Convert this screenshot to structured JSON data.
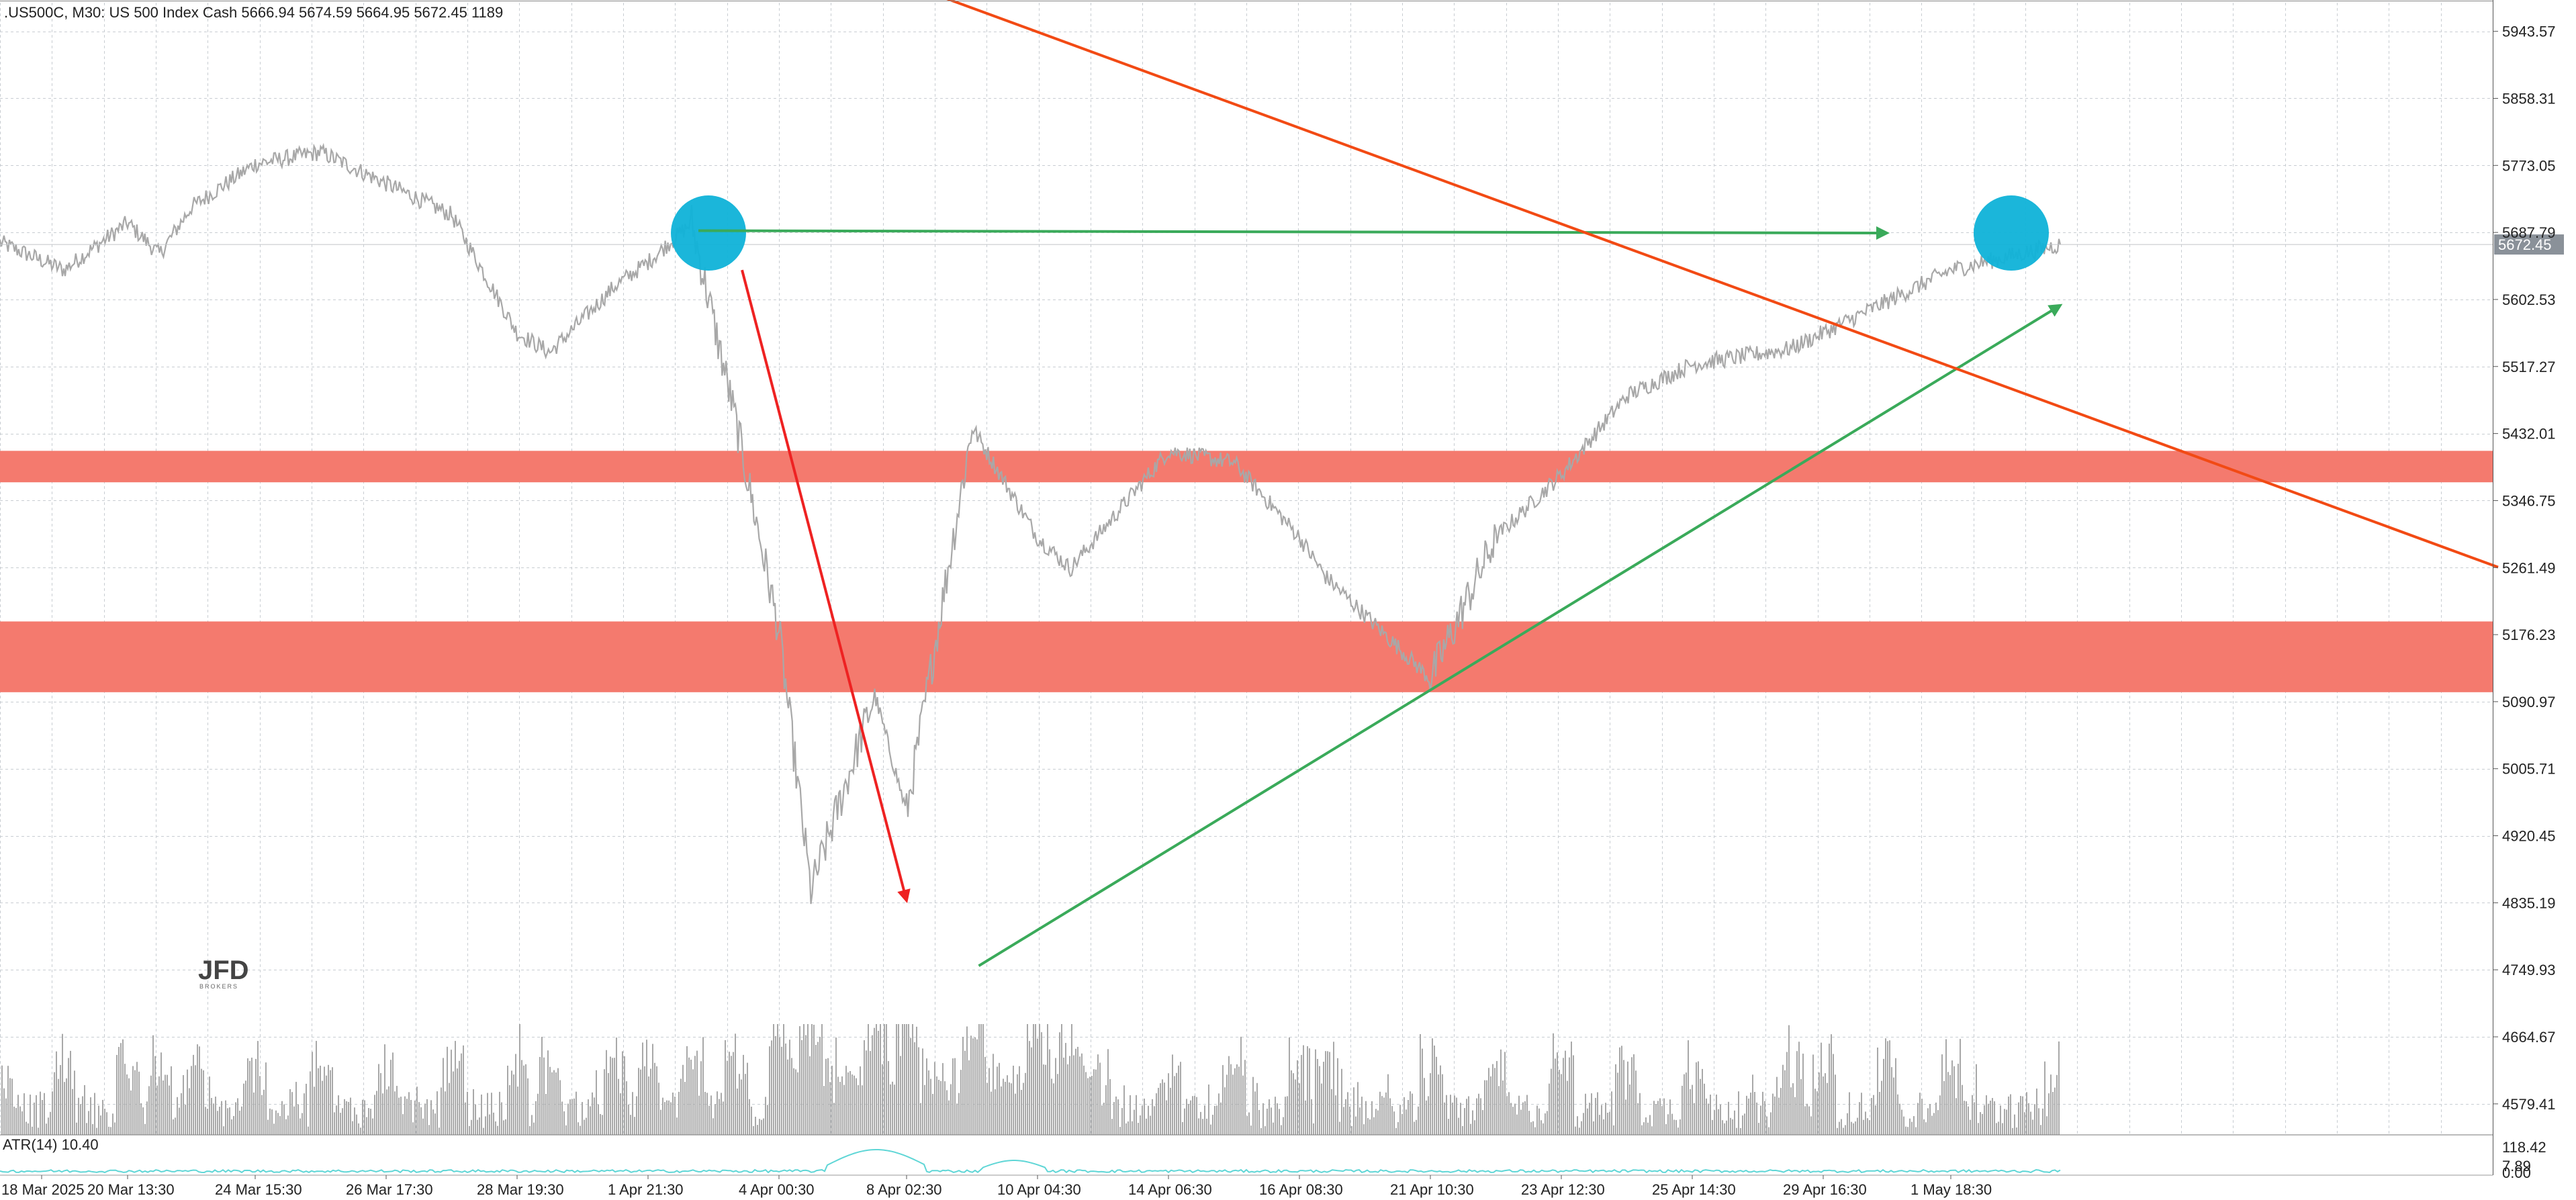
{
  "header": {
    "symbol": ".US500C",
    "timeframe": "M30",
    "description": "US 500 Index Cash",
    "ohlc": "5666.94 5674.59 5664.95 5672.45",
    "volume": "1189",
    "text": ".US500C, M30:  US 500 Index Cash  5666.94 5674.59 5664.95 5672.45  1189"
  },
  "current_price_label": "5672.45",
  "atr_label": "ATR(14) 10.40",
  "logo": {
    "main": "JFD",
    "sub": "BROKERS"
  },
  "colors": {
    "price_line": "#a8a8a8",
    "volume": "#a8a8a8",
    "resistance_zone": "#f47a6e",
    "circle": "#0fb2d8",
    "green_arrow": "#3aaa5a",
    "red_arrow": "#ee2222",
    "trendline": "#f24a14",
    "atr": "#5fd6d6",
    "grid": "#c8cdd2"
  },
  "chart_data": {
    "type": "line",
    "title": "",
    "series": [
      {
        "name": ".US500C",
        "points": [
          [
            "18 Mar 2025",
            5675
          ],
          [
            "19 Mar 2025",
            5640
          ],
          [
            "20 Mar 2025",
            5700
          ],
          [
            "21 Mar 2025",
            5660
          ],
          [
            "22 Mar 2025",
            5720
          ],
          [
            "24 Mar 2025",
            5775
          ],
          [
            "25 Mar 2025",
            5790
          ],
          [
            "26 Mar 2025",
            5750
          ],
          [
            "27 Mar 2025",
            5710
          ],
          [
            "28 Mar 2025",
            5560
          ],
          [
            "29 Mar 2025",
            5535
          ],
          [
            "31 Mar 2025",
            5620
          ],
          [
            "1 Apr 2025",
            5650
          ],
          [
            "2 Apr 2025",
            5700
          ],
          [
            "3 Apr 2025",
            5450
          ],
          [
            "4 Apr 2025",
            5180
          ],
          [
            "5 Apr 2025",
            4850
          ],
          [
            "7 Apr 2025",
            5100
          ],
          [
            "8 Apr 2025",
            4950
          ],
          [
            "9 Apr 2025",
            5440
          ],
          [
            "10 Apr 2025",
            5300
          ],
          [
            "11 Apr 2025",
            5260
          ],
          [
            "14 Apr 2025",
            5410
          ],
          [
            "15 Apr 2025",
            5395
          ],
          [
            "16 Apr 2025",
            5300
          ],
          [
            "17 Apr 2025",
            5250
          ],
          [
            "21 Apr 2025",
            5120
          ],
          [
            "22 Apr 2025",
            5300
          ],
          [
            "23 Apr 2025",
            5380
          ],
          [
            "24 Apr 2025",
            5480
          ],
          [
            "25 Apr 2025",
            5520
          ],
          [
            "28 Apr 2025",
            5540
          ],
          [
            "29 Apr 2025",
            5560
          ],
          [
            "30 Apr 2025",
            5600
          ],
          [
            "1 May 2025",
            5640
          ],
          [
            "2 May 2025",
            5672.45
          ]
        ]
      }
    ],
    "y_ticks": [
      "5943.57",
      "5858.31",
      "5773.05",
      "5687.79",
      "5602.53",
      "5517.27",
      "5432.01",
      "5346.75",
      "5261.49",
      "5176.23",
      "5090.97",
      "5005.71",
      "4920.45",
      "4835.19",
      "4749.93",
      "4664.67",
      "4579.41"
    ],
    "x_ticks": [
      "18 Mar 2025",
      "20 Mar 13:30",
      "24 Mar 15:30",
      "26 Mar 17:30",
      "28 Mar 19:30",
      "1 Apr 21:30",
      "4 Apr 00:30",
      "8 Apr 02:30",
      "10 Apr 04:30",
      "14 Apr 06:30",
      "16 Apr 08:30",
      "21 Apr 10:30",
      "23 Apr 12:30",
      "25 Apr 14:30",
      "29 Apr 16:30",
      "1 May 18:30"
    ],
    "atr_ticks": [
      "118.42",
      "7.89",
      "0.00"
    ],
    "ylim": [
      4540,
      5980
    ],
    "zones": [
      {
        "name": "resistance zone upper",
        "from": 5370,
        "to": 5410
      },
      {
        "name": "support zone lower",
        "from": 5103,
        "to": 5193
      }
    ],
    "annotations": [
      {
        "type": "circle",
        "at": [
          "1 Apr 2025",
          5687
        ]
      },
      {
        "type": "circle",
        "at": [
          "1 May 2025",
          5687
        ]
      },
      {
        "type": "arrow",
        "color": "green",
        "from": [
          "2 Apr 2025",
          5690
        ],
        "to": [
          "30 Apr 2025",
          5687
        ]
      },
      {
        "type": "arrow",
        "color": "red",
        "from": [
          "3 Apr 2025",
          5640
        ],
        "to": [
          "8 Apr 2025",
          4838
        ]
      },
      {
        "type": "arrow",
        "color": "green",
        "from": [
          "9 Apr 2025",
          4755
        ],
        "to": [
          "2 May 2025",
          5595
        ]
      },
      {
        "type": "trendline",
        "color": "orange",
        "from": [
          "24 Mar 2025",
          5985
        ],
        "to": [
          "6 May 2025",
          5262
        ]
      }
    ]
  }
}
